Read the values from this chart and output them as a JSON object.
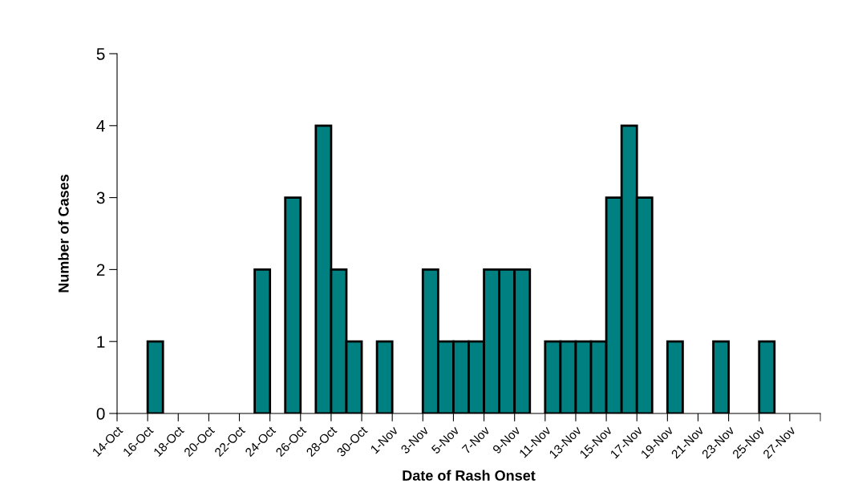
{
  "chart_data": {
    "type": "bar",
    "xlabel": "Date of Rash Onset",
    "ylabel": "Number of Cases",
    "categories": [
      "14-Oct",
      null,
      "16-Oct",
      null,
      "18-Oct",
      null,
      "20-Oct",
      null,
      "22-Oct",
      null,
      "24-Oct",
      null,
      "26-Oct",
      null,
      "28-Oct",
      null,
      "30-Oct",
      null,
      "1-Nov",
      null,
      "3-Nov",
      null,
      "5-Nov",
      null,
      "7-Nov",
      null,
      "9-Nov",
      null,
      "11-Nov",
      null,
      "13-Nov",
      null,
      "15-Nov",
      null,
      "17-Nov",
      null,
      "19-Nov",
      null,
      "21-Nov",
      null,
      "23-Nov",
      null,
      "25-Nov",
      null,
      "27-Nov",
      null
    ],
    "values": [
      0,
      0,
      1,
      0,
      0,
      0,
      0,
      0,
      0,
      2,
      0,
      3,
      0,
      4,
      2,
      1,
      0,
      1,
      0,
      0,
      2,
      1,
      1,
      1,
      2,
      2,
      2,
      0,
      1,
      1,
      1,
      1,
      3,
      4,
      3,
      0,
      1,
      0,
      0,
      1,
      0,
      0,
      1,
      0,
      0,
      0
    ],
    "color": "#008080",
    "ylim": [
      0,
      5
    ],
    "yticks": [
      0,
      1,
      2,
      3,
      4,
      5
    ],
    "grid": false,
    "legend": false
  }
}
